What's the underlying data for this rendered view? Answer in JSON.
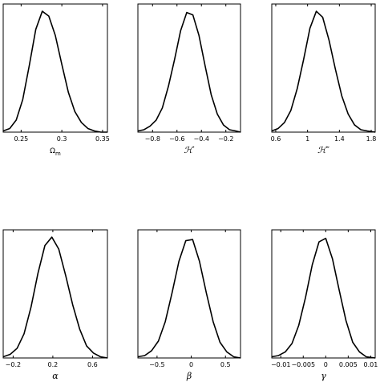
{
  "chart_data": [
    {
      "type": "line",
      "xlabel": "Ω",
      "xlabel_sub": "m",
      "xlim": [
        0.228,
        0.356
      ],
      "ylim": [
        0,
        1.06
      ],
      "xticks": [
        0.25,
        0.3,
        0.35
      ],
      "xtick_labels": [
        "0.25",
        "0.3",
        "0.35"
      ],
      "grid": false,
      "x": [
        0.228,
        0.236,
        0.244,
        0.252,
        0.26,
        0.268,
        0.276,
        0.284,
        0.292,
        0.3,
        0.308,
        0.316,
        0.324,
        0.332,
        0.34,
        0.348,
        0.356
      ],
      "y": [
        0.01,
        0.03,
        0.1,
        0.27,
        0.55,
        0.85,
        1.0,
        0.96,
        0.8,
        0.56,
        0.33,
        0.17,
        0.08,
        0.03,
        0.01,
        0.0,
        0.0
      ]
    },
    {
      "type": "line",
      "xlabel": "ℋ′",
      "xlim": [
        -0.92,
        -0.08
      ],
      "ylim": [
        0,
        1.06
      ],
      "xticks": [
        -0.8,
        -0.6,
        -0.4,
        -0.2
      ],
      "xtick_labels": [
        "−0.8",
        "−0.6",
        "−0.4",
        "−0.2"
      ],
      "grid": false,
      "x": [
        -0.92,
        -0.87,
        -0.82,
        -0.77,
        -0.72,
        -0.67,
        -0.62,
        -0.57,
        -0.52,
        -0.47,
        -0.42,
        -0.37,
        -0.32,
        -0.27,
        -0.22,
        -0.17,
        -0.12,
        -0.08
      ],
      "y": [
        0.01,
        0.02,
        0.05,
        0.1,
        0.2,
        0.38,
        0.6,
        0.84,
        0.99,
        0.97,
        0.8,
        0.55,
        0.31,
        0.15,
        0.06,
        0.02,
        0.01,
        0.0
      ]
    },
    {
      "type": "line",
      "xlabel": "ℋ″",
      "xlim": [
        0.55,
        1.85
      ],
      "ylim": [
        0,
        1.06
      ],
      "xticks": [
        0.6,
        1,
        1.4,
        1.8
      ],
      "xtick_labels": [
        "0.6",
        "1",
        "1.4",
        "1.8"
      ],
      "grid": false,
      "x": [
        0.55,
        0.63,
        0.71,
        0.79,
        0.87,
        0.95,
        1.03,
        1.11,
        1.19,
        1.27,
        1.35,
        1.43,
        1.51,
        1.59,
        1.67,
        1.75,
        1.85
      ],
      "y": [
        0.01,
        0.03,
        0.08,
        0.18,
        0.36,
        0.6,
        0.86,
        1.0,
        0.95,
        0.76,
        0.52,
        0.3,
        0.15,
        0.06,
        0.02,
        0.01,
        0.0
      ]
    },
    {
      "type": "line",
      "xlabel": "α",
      "xlim": [
        -0.3,
        0.75
      ],
      "ylim": [
        0,
        1.06
      ],
      "xticks": [
        -0.2,
        0.2,
        0.6
      ],
      "xtick_labels": [
        "−0.2",
        "0.2",
        "0.6"
      ],
      "grid": false,
      "x": [
        -0.3,
        -0.23,
        -0.16,
        -0.09,
        -0.02,
        0.05,
        0.12,
        0.19,
        0.26,
        0.33,
        0.4,
        0.47,
        0.54,
        0.61,
        0.68,
        0.75
      ],
      "y": [
        0.01,
        0.03,
        0.08,
        0.2,
        0.42,
        0.7,
        0.93,
        1.0,
        0.9,
        0.68,
        0.44,
        0.24,
        0.1,
        0.04,
        0.01,
        0.0
      ]
    },
    {
      "type": "line",
      "xlabel": "β",
      "xlim": [
        -0.78,
        0.72
      ],
      "ylim": [
        0,
        1.06
      ],
      "xticks": [
        -0.5,
        0,
        0.5
      ],
      "xtick_labels": [
        "−0.5",
        "0",
        "0.5"
      ],
      "grid": false,
      "x": [
        -0.78,
        -0.68,
        -0.58,
        -0.48,
        -0.38,
        -0.28,
        -0.18,
        -0.08,
        0.02,
        0.12,
        0.22,
        0.32,
        0.42,
        0.52,
        0.62,
        0.72
      ],
      "y": [
        0.01,
        0.02,
        0.06,
        0.14,
        0.3,
        0.54,
        0.8,
        0.97,
        0.98,
        0.8,
        0.54,
        0.3,
        0.13,
        0.05,
        0.01,
        0.0
      ]
    },
    {
      "type": "line",
      "xlabel": "γ",
      "xlim": [
        -0.012,
        0.011
      ],
      "ylim": [
        0,
        1.06
      ],
      "xticks": [
        -0.01,
        -0.005,
        0,
        0.005,
        0.01
      ],
      "xtick_labels": [
        "−0.01",
        "−0.005",
        "0",
        "0.005",
        "0.01"
      ],
      "grid": false,
      "x": [
        -0.012,
        -0.0105,
        -0.009,
        -0.0075,
        -0.006,
        -0.0045,
        -0.003,
        -0.0015,
        0.0,
        0.0015,
        0.003,
        0.0045,
        0.006,
        0.0075,
        0.009,
        0.011
      ],
      "y": [
        0.01,
        0.02,
        0.05,
        0.12,
        0.27,
        0.5,
        0.77,
        0.96,
        0.99,
        0.82,
        0.56,
        0.31,
        0.13,
        0.05,
        0.01,
        0.0
      ]
    }
  ]
}
